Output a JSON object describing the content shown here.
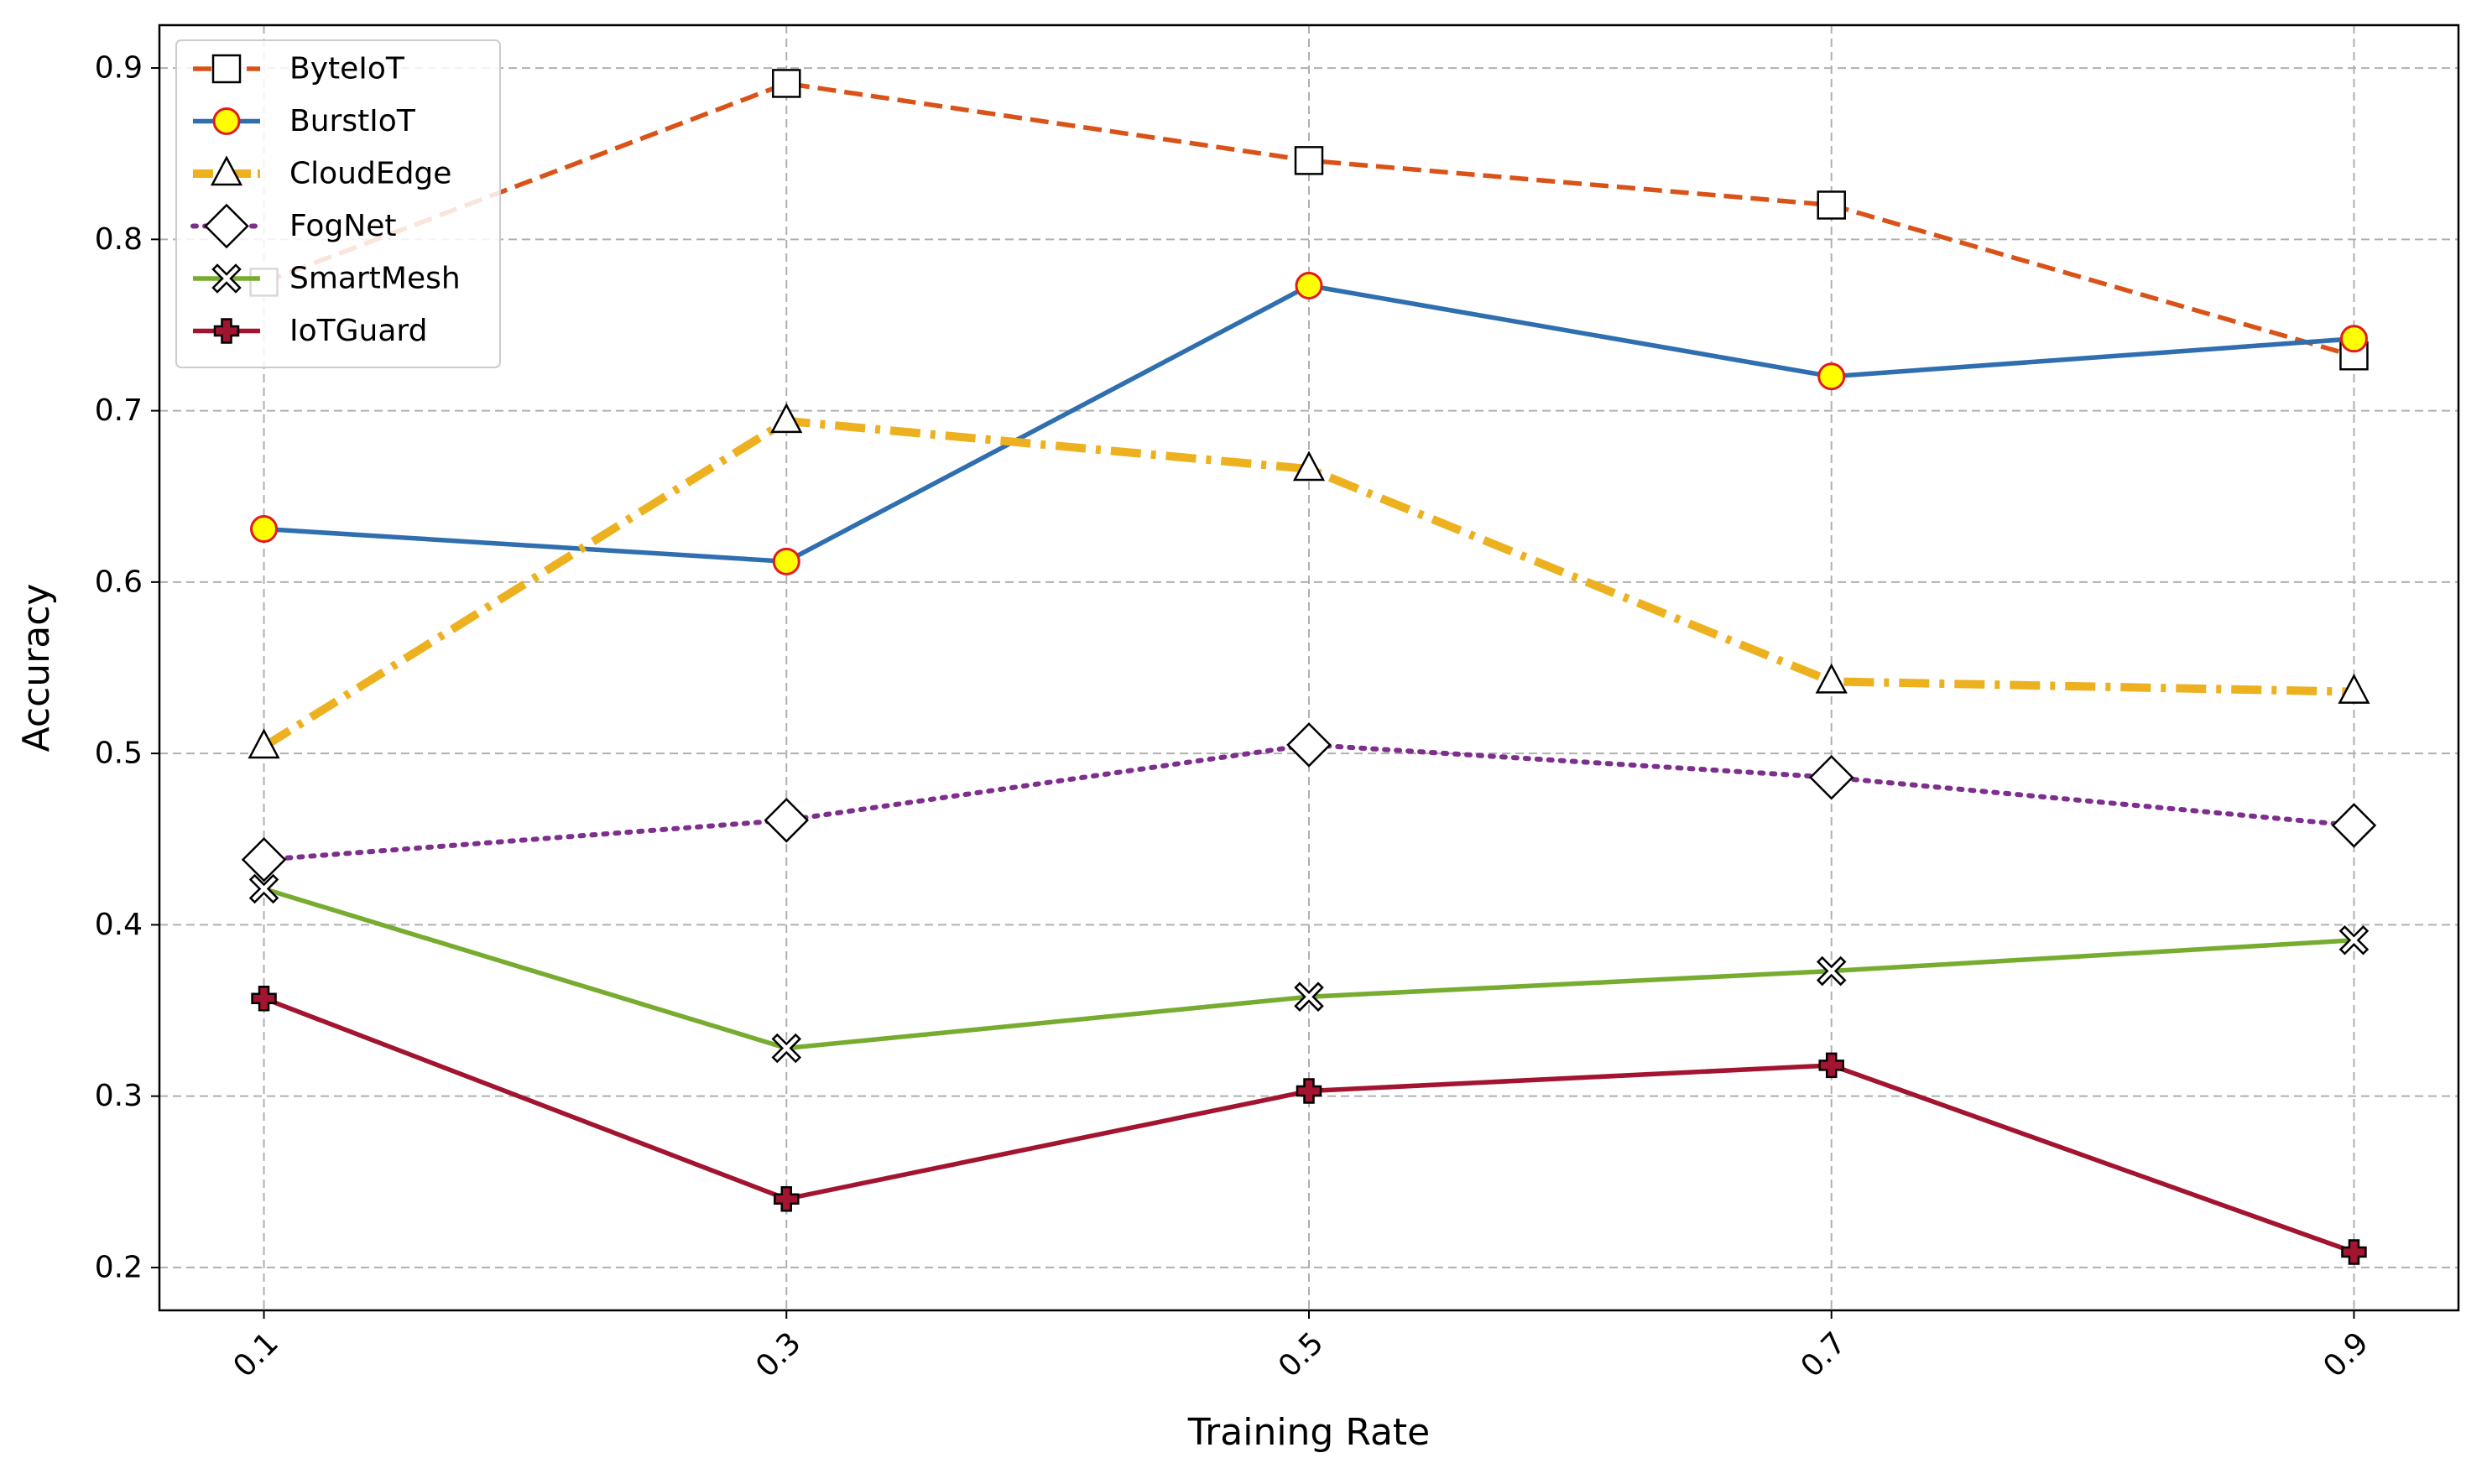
{
  "chart_data": {
    "type": "line",
    "title": "",
    "xlabel": "Training Rate",
    "ylabel": "Accuracy",
    "x": [
      0.1,
      0.3,
      0.5,
      0.7,
      0.9
    ],
    "x_tick_labels": [
      "0.1",
      "0.3",
      "0.5",
      "0.7",
      "0.9"
    ],
    "y_ticks": [
      0.2,
      0.3,
      0.4,
      0.5,
      0.6,
      0.7,
      0.8,
      0.9
    ],
    "y_tick_labels": [
      "0.2",
      "0.3",
      "0.4",
      "0.5",
      "0.6",
      "0.7",
      "0.8",
      "0.9"
    ],
    "xlim": [
      0.06,
      0.94
    ],
    "ylim": [
      0.175,
      0.925
    ],
    "grid": true,
    "legend_position": "top-left",
    "series": [
      {
        "name": "ByteIoT",
        "values": [
          0.775,
          0.891,
          0.846,
          0.82,
          0.732
        ],
        "color": "#d95319",
        "line_style": "dashed",
        "marker": "square"
      },
      {
        "name": "BurstIoT",
        "values": [
          0.631,
          0.612,
          0.773,
          0.72,
          0.742
        ],
        "color": "#2f6eaf",
        "line_style": "solid",
        "marker": "circle"
      },
      {
        "name": "CloudEdge",
        "values": [
          0.504,
          0.694,
          0.666,
          0.542,
          0.536
        ],
        "color": "#edb120",
        "line_style": "dashdot",
        "marker": "triangle"
      },
      {
        "name": "FogNet",
        "values": [
          0.438,
          0.461,
          0.505,
          0.486,
          0.458
        ],
        "color": "#7e2f8e",
        "line_style": "dotted",
        "marker": "diamond"
      },
      {
        "name": "SmartMesh",
        "values": [
          0.421,
          0.328,
          0.358,
          0.373,
          0.391
        ],
        "color": "#77ac30",
        "line_style": "solid",
        "marker": "x"
      },
      {
        "name": "IoTGuard",
        "values": [
          0.357,
          0.24,
          0.303,
          0.318,
          0.209
        ],
        "color": "#a2142f",
        "line_style": "solid",
        "marker": "plus"
      }
    ]
  }
}
